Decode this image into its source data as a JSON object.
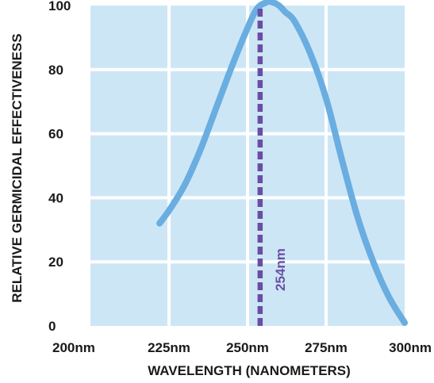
{
  "chart_data": {
    "type": "line",
    "title": "",
    "xlabel": "WAVELENGTH (NANOMETERS)",
    "ylabel": "RELATIVE GERMICIDAL EFFECTIVENESS",
    "xlim": [
      200,
      300
    ],
    "ylim": [
      0,
      100
    ],
    "x_ticks": [
      200,
      225,
      250,
      275,
      300
    ],
    "x_tick_labels": [
      "200nm",
      "225nm",
      "250nm",
      "275nm",
      "300nm"
    ],
    "y_ticks": [
      0,
      20,
      40,
      60,
      80,
      100
    ],
    "y_tick_labels": [
      "0",
      "20",
      "40",
      "60",
      "80",
      "100"
    ],
    "grid": true,
    "series": [
      {
        "x": [
          222,
          225,
          230,
          235,
          240,
          245,
          250,
          253,
          256,
          258,
          260,
          262,
          265,
          270,
          275,
          280,
          285,
          290,
          295,
          300
        ],
        "y": [
          32,
          36,
          44,
          55,
          68,
          81,
          93,
          99,
          101,
          101,
          100,
          98,
          95,
          85,
          71,
          52,
          34,
          20,
          9,
          1
        ]
      }
    ],
    "annotations": [
      {
        "x": 254,
        "label": "254nm"
      }
    ],
    "colors": {
      "plot_background": "#cde6f6",
      "grid": "#ffffff",
      "curve": "#6aade0",
      "marker_line": "#6a4ea3",
      "text": "#1a1a1a"
    }
  }
}
